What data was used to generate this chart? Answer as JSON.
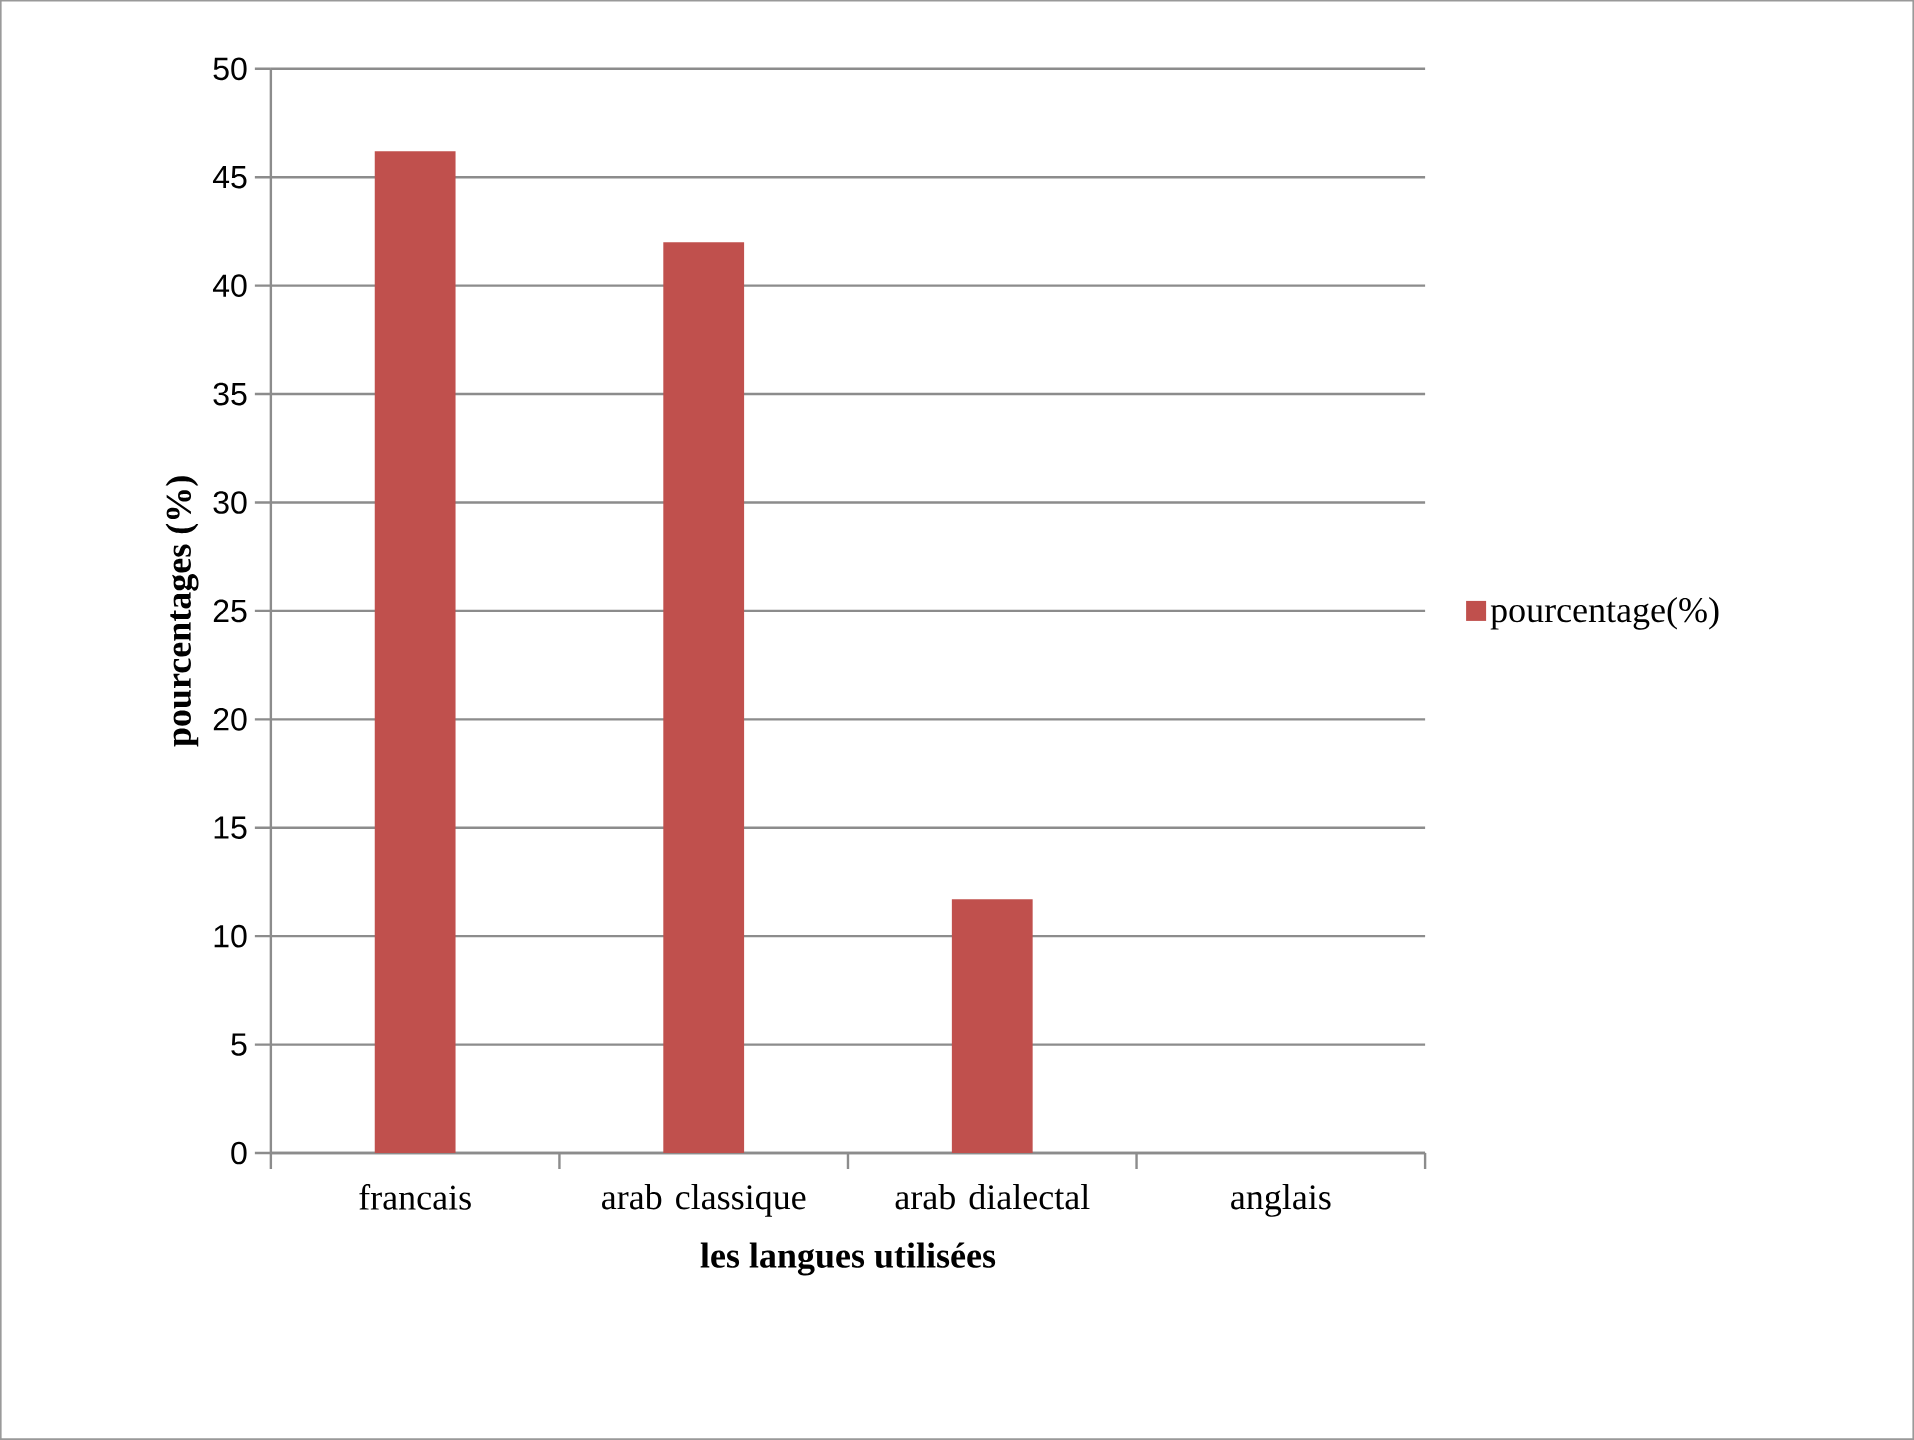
{
  "chart_data": {
    "type": "bar",
    "xlabel": "les langues utilisées",
    "ylabel": "pourcentages (%)",
    "categories": [
      "francais",
      "arab classique",
      "arab dialectal",
      "anglais"
    ],
    "series": [
      {
        "name": "pourcentage(%)",
        "color": "#c0504d",
        "values": [
          46.2,
          42.0,
          11.7,
          0
        ]
      }
    ],
    "ylim": [
      0,
      50
    ],
    "yticks": [
      0,
      5,
      10,
      15,
      20,
      25,
      30,
      35,
      40,
      45,
      50
    ],
    "grid": "y",
    "legend": "right"
  }
}
